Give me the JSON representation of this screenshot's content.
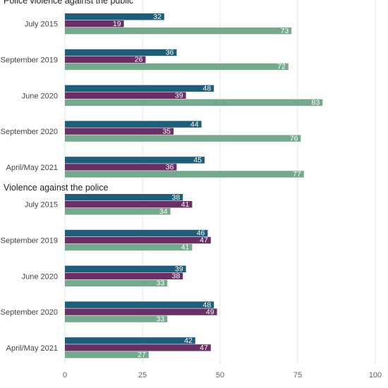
{
  "chart_data": [
    {
      "type": "bar",
      "orientation": "horizontal",
      "title": "Police violence against the public",
      "categories": [
        "July 2015",
        "September 2019",
        "June 2020",
        "September 2020",
        "April/May 2021"
      ],
      "series": [
        {
          "color": "#1f5e7a",
          "values": [
            32,
            36,
            48,
            44,
            45
          ]
        },
        {
          "color": "#6b2f66",
          "values": [
            19,
            26,
            39,
            35,
            36
          ]
        },
        {
          "color": "#74a98c",
          "values": [
            73,
            72,
            83,
            76,
            77
          ]
        }
      ],
      "xlim": [
        0,
        100
      ],
      "grid": true
    },
    {
      "type": "bar",
      "orientation": "horizontal",
      "title": "Violence against the police",
      "categories": [
        "July 2015",
        "September 2019",
        "June 2020",
        "September 2020",
        "April/May 2021"
      ],
      "series": [
        {
          "color": "#1f5e7a",
          "values": [
            38,
            46,
            39,
            48,
            42
          ]
        },
        {
          "color": "#6b2f66",
          "values": [
            41,
            47,
            38,
            49,
            47
          ]
        },
        {
          "color": "#74a98c",
          "values": [
            34,
            41,
            33,
            33,
            27
          ]
        }
      ],
      "xlim": [
        0,
        100
      ],
      "xticks": [
        0,
        25,
        50,
        75,
        100
      ],
      "grid": true
    }
  ]
}
